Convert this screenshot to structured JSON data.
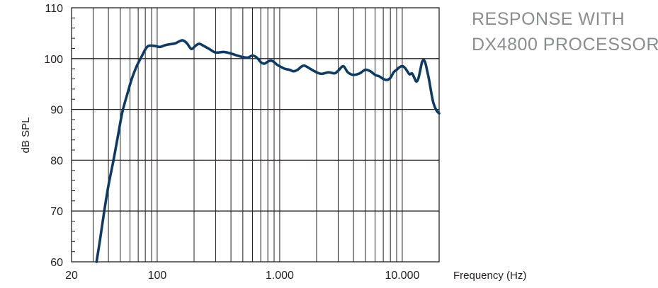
{
  "chart_data": {
    "type": "line",
    "title_lines": [
      "RESPONSE WITH",
      "DX4800 PROCESSOR"
    ],
    "xlabel": "Frequency (Hz)",
    "ylabel": "dB SPL",
    "x_scale": "log",
    "xlim": [
      20,
      20000
    ],
    "ylim": [
      60,
      110
    ],
    "x_ticks": [
      {
        "value": 20,
        "label": "20"
      },
      {
        "value": 100,
        "label": "100"
      },
      {
        "value": 1000,
        "label": "1.000"
      },
      {
        "value": 10000,
        "label": "10.000"
      }
    ],
    "y_ticks": [
      {
        "value": 60,
        "label": "60"
      },
      {
        "value": 70,
        "label": "70"
      },
      {
        "value": 80,
        "label": "80"
      },
      {
        "value": 90,
        "label": "90"
      },
      {
        "value": 100,
        "label": "100"
      },
      {
        "value": 110,
        "label": "110"
      }
    ],
    "grid": true,
    "colors": {
      "line": "#0d3b66",
      "grid": "#231f20",
      "title": "#8a8c8e"
    },
    "series": [
      {
        "x": [
          32,
          34,
          37,
          40,
          44,
          48,
          52,
          57,
          62,
          68,
          75,
          80,
          85,
          95,
          105,
          115,
          125,
          140,
          160,
          175,
          190,
          205,
          220,
          240,
          270,
          300,
          350,
          400,
          450,
          500,
          550,
          600,
          650,
          700,
          750,
          800,
          850,
          900,
          950,
          1000,
          1100,
          1200,
          1300,
          1400,
          1500,
          1600,
          1800,
          2000,
          2200,
          2500,
          2800,
          3000,
          3300,
          3600,
          4000,
          4500,
          5000,
          5500,
          6000,
          6500,
          7000,
          7500,
          8000,
          8500,
          9000,
          9500,
          10000,
          10500,
          11000,
          11500,
          12000,
          12500,
          13000,
          13500,
          14000,
          14500,
          15000,
          15500,
          16000,
          16500,
          17000,
          17500,
          18000,
          19000,
          20000
        ],
        "y": [
          60,
          64,
          70,
          75,
          80,
          85,
          89.5,
          93,
          96,
          98.5,
          100.5,
          101.8,
          102.5,
          102.5,
          102.3,
          102.6,
          102.8,
          103,
          103.6,
          103,
          101.9,
          102.5,
          102.9,
          102.5,
          101.8,
          101.2,
          101.3,
          101,
          100.6,
          100.3,
          100.2,
          100.6,
          100.2,
          99.3,
          99,
          99.4,
          99.6,
          99.3,
          98.8,
          98.5,
          98,
          97.8,
          97.5,
          97.8,
          98.4,
          98.6,
          97.9,
          97.3,
          97,
          97.3,
          97.1,
          97.6,
          98.5,
          97.3,
          96.8,
          97.1,
          97.8,
          97.5,
          96.8,
          96.5,
          96,
          95.8,
          96.2,
          97.3,
          97.8,
          98.3,
          98.5,
          98.2,
          97.5,
          96.9,
          97.1,
          96.3,
          95.5,
          96,
          97.6,
          99.3,
          99.7,
          99,
          97.5,
          96,
          94.2,
          92.5,
          91.2,
          89.8,
          89.2
        ]
      }
    ]
  }
}
